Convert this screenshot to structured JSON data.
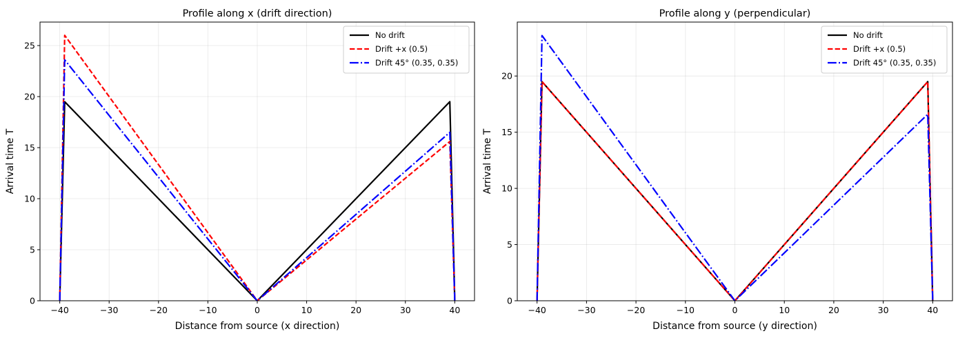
{
  "chart_data": [
    {
      "type": "line",
      "title": "Profile along x (drift direction)",
      "xlabel": "Distance from source (x direction)",
      "ylabel": "Arrival time T",
      "xlim": [
        -44,
        44
      ],
      "ylim": [
        0,
        27.3
      ],
      "xticks": [
        -40,
        -30,
        -20,
        -10,
        0,
        10,
        20,
        30,
        40
      ],
      "yticks": [
        0,
        5,
        10,
        15,
        20,
        25
      ],
      "grid": true,
      "legend_position": "top-right",
      "series": [
        {
          "name": "No drift",
          "color": "#000000",
          "style": "solid",
          "x": [
            -40,
            -39,
            0,
            39,
            40
          ],
          "y": [
            0,
            19.5,
            0,
            19.5,
            0
          ]
        },
        {
          "name": "Drift +x (0.5)",
          "color": "#ff0000",
          "style": "dashed",
          "x": [
            -40,
            -39,
            0,
            39,
            40
          ],
          "y": [
            0,
            26.0,
            0,
            15.6,
            0
          ]
        },
        {
          "name": "Drift 45° (0.35, 0.35)",
          "color": "#0000ff",
          "style": "dashdot",
          "x": [
            -40,
            -39,
            0,
            39,
            40
          ],
          "y": [
            0,
            23.6,
            0,
            16.5,
            0
          ]
        }
      ]
    },
    {
      "type": "line",
      "title": "Profile along y (perpendicular)",
      "xlabel": "Distance from source (y direction)",
      "ylabel": "Arrival time T",
      "xlim": [
        -44,
        44
      ],
      "ylim": [
        0,
        24.8
      ],
      "xticks": [
        -40,
        -30,
        -20,
        -10,
        0,
        10,
        20,
        30,
        40
      ],
      "yticks": [
        0,
        5,
        10,
        15,
        20
      ],
      "grid": true,
      "legend_position": "top-right",
      "series": [
        {
          "name": "No drift",
          "color": "#000000",
          "style": "solid",
          "x": [
            -40,
            -39,
            0,
            39,
            40
          ],
          "y": [
            0,
            19.5,
            0,
            19.5,
            0
          ]
        },
        {
          "name": "Drift +x (0.5)",
          "color": "#ff0000",
          "style": "dashed",
          "x": [
            -40,
            -39,
            0,
            39,
            40
          ],
          "y": [
            0,
            19.5,
            0,
            19.5,
            0
          ]
        },
        {
          "name": "Drift 45° (0.35, 0.35)",
          "color": "#0000ff",
          "style": "dashdot",
          "x": [
            -40,
            -39,
            0,
            39,
            40
          ],
          "y": [
            0,
            23.6,
            0,
            16.6,
            0
          ]
        }
      ]
    }
  ]
}
